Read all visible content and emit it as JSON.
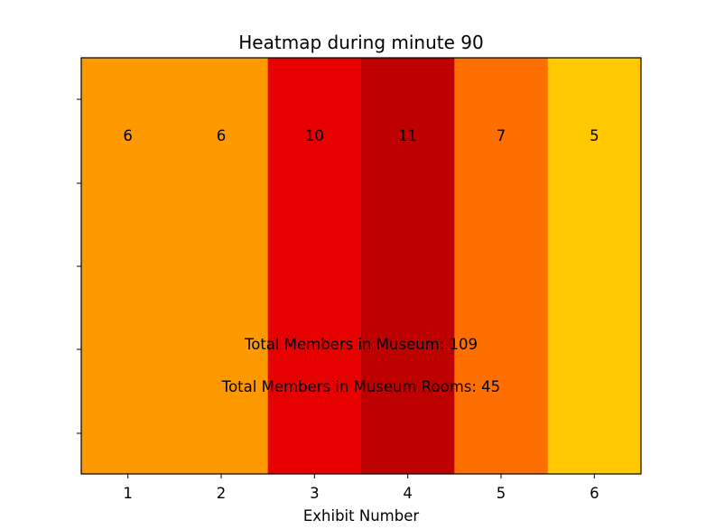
{
  "chart_data": {
    "type": "heatmap",
    "title": "Heatmap during minute 90",
    "xlabel": "Exhibit Number",
    "ylabel": "",
    "categories": [
      "1",
      "2",
      "3",
      "4",
      "5",
      "6"
    ],
    "values": [
      6,
      6,
      10,
      11,
      7,
      5
    ],
    "cell_colors": [
      "#ff9900",
      "#ff9900",
      "#e60000",
      "#bd0000",
      "#ff6f00",
      "#ffc800"
    ],
    "annotations": [
      "Total Members in Museum: 109",
      "Total Members in Museum Rooms: 45"
    ],
    "y_ticks_labeled": false,
    "grid": false
  }
}
